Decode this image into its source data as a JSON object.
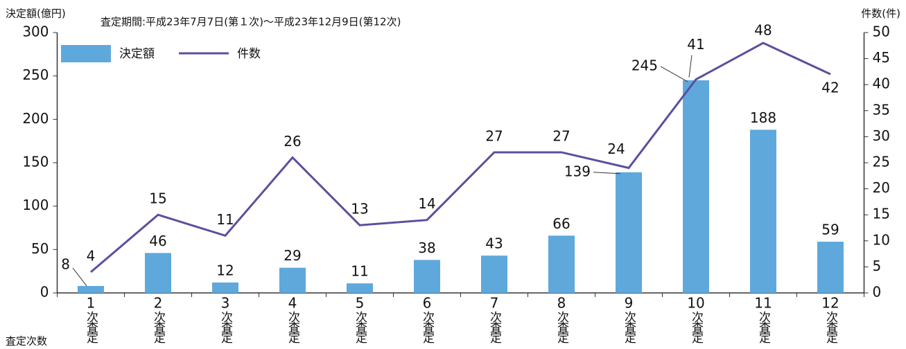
{
  "chart_data": {
    "type": "bar-line",
    "subtitle": "査定期間:平成23年7月7日(第１次)～平成23年12月9日(第12次)",
    "ylabel": "決定額(億円)",
    "y2label": "件数(件)",
    "xlabel": "査定次数",
    "categories": [
      "1",
      "2",
      "3",
      "4",
      "5",
      "6",
      "7",
      "8",
      "9",
      "10",
      "11",
      "12"
    ],
    "category_suffix": "次査定",
    "series": [
      {
        "name": "決定額",
        "type": "bar",
        "color": "#5fa8dc",
        "values": [
          8,
          46,
          12,
          29,
          11,
          38,
          43,
          66,
          139,
          245,
          188,
          59
        ]
      },
      {
        "name": "件数",
        "type": "line",
        "axis": "y2",
        "color": "#5a4f9e",
        "values": [
          4,
          15,
          11,
          26,
          13,
          14,
          27,
          27,
          24,
          41,
          48,
          42
        ]
      }
    ],
    "ylim": [
      0,
      300
    ],
    "yticks": [
      0,
      50,
      100,
      150,
      200,
      250,
      300
    ],
    "y2lim": [
      0,
      50
    ],
    "y2ticks": [
      0,
      5,
      10,
      15,
      20,
      25,
      30,
      35,
      40,
      45,
      50
    ],
    "grid": false
  }
}
